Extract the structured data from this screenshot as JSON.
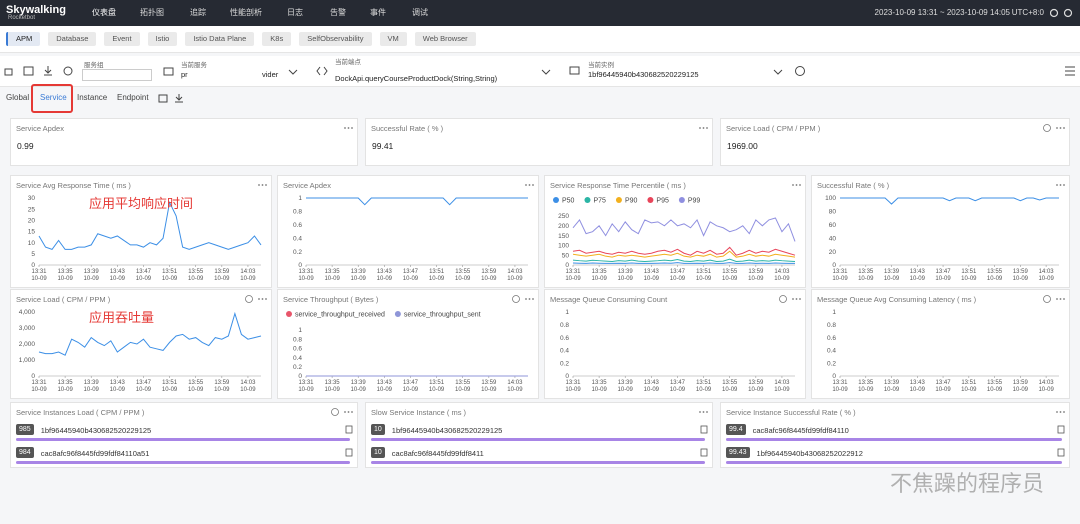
{
  "header": {
    "logo": "Skywalking",
    "logo_sub": "Rocketbot",
    "menu": [
      "仪表盘",
      "拓扑图",
      "追踪",
      "性能剖析",
      "日志",
      "告警",
      "事件",
      "调试"
    ],
    "time_range": "2023-10-09 13:31 ~ 2023-10-09 14:05",
    "timezone": "UTC+8:0"
  },
  "layer_tabs": [
    "APM",
    "Database",
    "Event",
    "Istio",
    "Istio Data Plane",
    "K8s",
    "SelfObservability",
    "VM",
    "Web Browser"
  ],
  "selectors": {
    "service_group_label": "服务组",
    "service_label": "当前服务",
    "service_value_head": "pr",
    "service_value_tail": "vider",
    "endpoint_label": "当前端点",
    "endpoint_value": "DockApi.queryCourseProductDock(String,String)",
    "instance_label": "当前实例",
    "instance_value": "1bf96445940b430682520229125"
  },
  "dashboard_tabs": [
    "Global",
    "Service",
    "Instance",
    "Endpoint"
  ],
  "cards": [
    {
      "title": "Service Apdex",
      "value": "0.99"
    },
    {
      "title": "Successful Rate ( % )",
      "value": "99.41"
    },
    {
      "title": "Service Load ( CPM / PPM )",
      "value": "1969.00"
    }
  ],
  "time_axis": {
    "categories": [
      "13:31\n10-09",
      null,
      null,
      null,
      "13:35\n10-09",
      null,
      null,
      null,
      "13:39\n10-09",
      null,
      null,
      null,
      "13:43\n10-09",
      null,
      null,
      null,
      "13:47\n10-09",
      null,
      null,
      null,
      "13:51\n10-09",
      null,
      null,
      null,
      "13:55\n10-09",
      null,
      null,
      null,
      "13:59\n10-09",
      null,
      null,
      null,
      "14:03\n10-09",
      null,
      null
    ]
  },
  "charts": [
    {
      "type": "line",
      "title": "Service Avg Response Time ( ms )",
      "annotation": "应用平均响应时间",
      "ylim": [
        0,
        30
      ],
      "yticks": [
        0,
        5,
        10,
        15,
        20,
        25,
        30
      ],
      "series": [
        {
          "color": "#3c8fe6",
          "values": [
            13,
            8,
            7,
            11,
            7,
            7,
            8,
            8,
            9,
            14,
            13,
            12,
            13,
            11,
            9,
            9,
            8,
            10,
            9,
            12,
            28,
            22,
            8,
            7,
            8,
            9,
            10,
            9,
            8,
            7,
            8,
            9,
            10,
            13,
            9
          ]
        }
      ]
    },
    {
      "type": "line",
      "title": "Service Apdex",
      "ylim": [
        0,
        1
      ],
      "yticks": [
        0,
        0.2,
        0.4,
        0.6,
        0.8,
        1
      ],
      "series": [
        {
          "color": "#3c8fe6",
          "values": [
            1,
            1,
            1,
            1,
            1,
            1,
            1,
            1,
            1,
            0.9,
            1,
            1,
            1,
            1,
            1,
            1,
            1,
            1,
            1,
            1,
            1,
            1,
            0.9,
            1,
            1,
            1,
            1,
            1,
            1,
            1,
            1,
            1,
            1,
            1,
            1
          ]
        }
      ]
    },
    {
      "type": "line",
      "title": "Service Response Time Percentile ( ms )",
      "ylim": [
        0,
        250
      ],
      "yticks": [
        0,
        50,
        100,
        150,
        200,
        250
      ],
      "series": [
        {
          "name": "P50",
          "color": "#3c8fe6",
          "values": [
            10,
            9,
            8,
            10,
            9,
            8,
            8,
            9,
            8,
            10,
            8,
            8,
            8,
            9,
            10,
            9,
            12,
            8,
            8,
            9,
            8,
            10,
            8,
            8,
            12,
            8,
            8,
            10,
            8,
            9,
            8,
            10,
            9,
            8,
            8
          ]
        },
        {
          "name": "P75",
          "color": "#2bb5a5",
          "values": [
            25,
            22,
            20,
            24,
            22,
            20,
            18,
            22,
            20,
            25,
            20,
            18,
            20,
            22,
            25,
            22,
            28,
            20,
            18,
            22,
            20,
            25,
            18,
            20,
            30,
            18,
            20,
            25,
            20,
            22,
            20,
            25,
            22,
            20,
            18
          ]
        },
        {
          "name": "P90",
          "color": "#f2b01e",
          "values": [
            55,
            50,
            45,
            50,
            55,
            45,
            40,
            50,
            45,
            50,
            45,
            40,
            45,
            50,
            55,
            50,
            60,
            45,
            40,
            50,
            45,
            55,
            40,
            45,
            70,
            40,
            45,
            55,
            45,
            50,
            45,
            55,
            50,
            45,
            40
          ]
        },
        {
          "name": "P95",
          "color": "#e8455a",
          "values": [
            70,
            75,
            60,
            65,
            70,
            60,
            55,
            65,
            60,
            70,
            60,
            55,
            60,
            70,
            75,
            65,
            80,
            60,
            50,
            70,
            60,
            75,
            55,
            60,
            90,
            50,
            60,
            75,
            60,
            70,
            65,
            80,
            70,
            60,
            50
          ]
        },
        {
          "name": "P99",
          "color": "#8f8fe0",
          "values": [
            190,
            230,
            160,
            170,
            200,
            150,
            210,
            170,
            220,
            180,
            160,
            230,
            215,
            220,
            200,
            230,
            200,
            210,
            190,
            230,
            150,
            220,
            200,
            190,
            170,
            180,
            200,
            160,
            230,
            200,
            230,
            240,
            170,
            210,
            120
          ]
        }
      ]
    },
    {
      "type": "line",
      "title": "Successful Rate ( % )",
      "ylim": [
        0,
        100
      ],
      "yticks": [
        0,
        20,
        40,
        60,
        80,
        100
      ],
      "series": [
        {
          "color": "#3c8fe6",
          "values": [
            100,
            100,
            100,
            100,
            100,
            100,
            100,
            100,
            91,
            100,
            100,
            100,
            100,
            100,
            100,
            100,
            100,
            96,
            100,
            100,
            100,
            96,
            100,
            100,
            100,
            100,
            100,
            100,
            96,
            100,
            100,
            97,
            100,
            100,
            100
          ]
        }
      ]
    },
    {
      "type": "line",
      "title": "Service Load ( CPM / PPM )",
      "annotation": "应用吞吐量",
      "ylim": [
        0,
        4000
      ],
      "yticks": [
        0,
        {
          "value": 1000,
          "label": "1,000"
        },
        {
          "value": 2000,
          "label": "2,000"
        },
        {
          "value": 3000,
          "label": "3,000"
        },
        {
          "value": 4000,
          "label": "4,000"
        }
      ],
      "series": [
        {
          "color": "#3c8fe6",
          "values": [
            1500,
            1400,
            1400,
            1500,
            1300,
            2300,
            2100,
            1800,
            2400,
            2100,
            1900,
            2200,
            1500,
            1800,
            2100,
            2000,
            2300,
            1800,
            1700,
            1600,
            2100,
            2500,
            2600,
            2300,
            2400,
            2100,
            1900,
            2400,
            2300,
            2500,
            3900,
            2600,
            2300,
            2400,
            2500
          ]
        }
      ]
    },
    {
      "type": "line",
      "title": "Service Throughput ( Bytes )",
      "ylim": [
        0,
        1
      ],
      "yticks": [
        0,
        0.2,
        0.4,
        0.6,
        0.8,
        1
      ],
      "series": [
        {
          "name": "service_throughput_received",
          "color": "#e8556a",
          "values": [
            0,
            0,
            0,
            0,
            0,
            0,
            0,
            0,
            0,
            0,
            0,
            0,
            0,
            0,
            0,
            0,
            0,
            0,
            0,
            0,
            0,
            0,
            0,
            0,
            0,
            0,
            0,
            0,
            0,
            0,
            0,
            0,
            0,
            0,
            0
          ]
        },
        {
          "name": "service_throughput_sent",
          "color": "#8f96d8",
          "values": [
            0,
            0,
            0,
            0,
            0,
            0,
            0,
            0,
            0,
            0,
            0,
            0,
            0,
            0,
            0,
            0,
            0,
            0,
            0,
            0,
            0,
            0,
            0,
            0,
            0,
            0,
            0,
            0,
            0,
            0,
            0,
            0,
            0,
            0,
            0
          ]
        }
      ]
    },
    {
      "type": "line",
      "title": "Message Queue Consuming Count",
      "ylim": [
        0,
        1
      ],
      "yticks": [
        0,
        0.2,
        0.4,
        0.6,
        0.8,
        1
      ],
      "series": []
    },
    {
      "type": "line",
      "title": "Message Queue Avg Consuming Latency ( ms )",
      "ylim": [
        0,
        1
      ],
      "yticks": [
        0,
        0.2,
        0.4,
        0.6,
        0.8,
        1
      ],
      "series": []
    }
  ],
  "lists": [
    {
      "title": "Service Instances Load ( CPM / PPM )",
      "items": [
        {
          "value": 985,
          "name": "1bf96445940b430682520229125"
        },
        {
          "value": 984,
          "name": "cac8afc96f8445fd99fdf84110a51"
        }
      ]
    },
    {
      "title": "Slow Service Instance ( ms )",
      "items": [
        {
          "value": 10,
          "name": "1bf96445940b430682520229125"
        },
        {
          "value": 10,
          "name": "cac8afc96f8445fd99fdf8411"
        }
      ]
    },
    {
      "title": "Service Instance Successful Rate ( % )",
      "items": [
        {
          "value": 99.4,
          "name": "cac8afc96f8445fd99fdf84110"
        },
        {
          "value": 99.43,
          "name": "1bf96445940b43068252022912"
        }
      ]
    }
  ],
  "watermark": "不焦躁的程序员"
}
